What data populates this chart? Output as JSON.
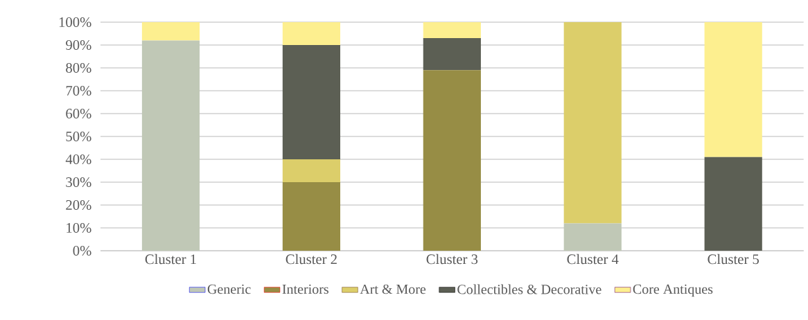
{
  "chart_data": {
    "type": "bar",
    "stacked": true,
    "categories": [
      "Cluster 1",
      "Cluster 2",
      "Cluster 3",
      "Cluster 4",
      "Cluster 5"
    ],
    "series": [
      {
        "name": "Generic",
        "color": "#c0c8b6",
        "values": [
          92,
          0,
          0,
          12,
          0
        ]
      },
      {
        "name": "Interiors",
        "color": "#978d45",
        "values": [
          0,
          30,
          79,
          0,
          0
        ]
      },
      {
        "name": "Art & More",
        "color": "#dcce6a",
        "values": [
          0,
          10,
          0,
          88,
          0
        ]
      },
      {
        "name": "Collectibles & Decorative",
        "color": "#5c5f54",
        "values": [
          0,
          50,
          14,
          0,
          41
        ]
      },
      {
        "name": "Core Antiques",
        "color": "#fdef8f",
        "values": [
          8,
          10,
          7,
          0,
          59
        ]
      }
    ],
    "ylim": [
      0,
      100
    ],
    "yticks": [
      {
        "value": 0,
        "label": "0%"
      },
      {
        "value": 10,
        "label": "10%"
      },
      {
        "value": 20,
        "label": "20%"
      },
      {
        "value": 30,
        "label": "30%"
      },
      {
        "value": 40,
        "label": "40%"
      },
      {
        "value": 50,
        "label": "50%"
      },
      {
        "value": 60,
        "label": "60%"
      },
      {
        "value": 70,
        "label": "70%"
      },
      {
        "value": 80,
        "label": "80%"
      },
      {
        "value": 90,
        "label": "90%"
      },
      {
        "value": 100,
        "label": "100%"
      }
    ],
    "grid": "y",
    "legend": "bottom"
  }
}
